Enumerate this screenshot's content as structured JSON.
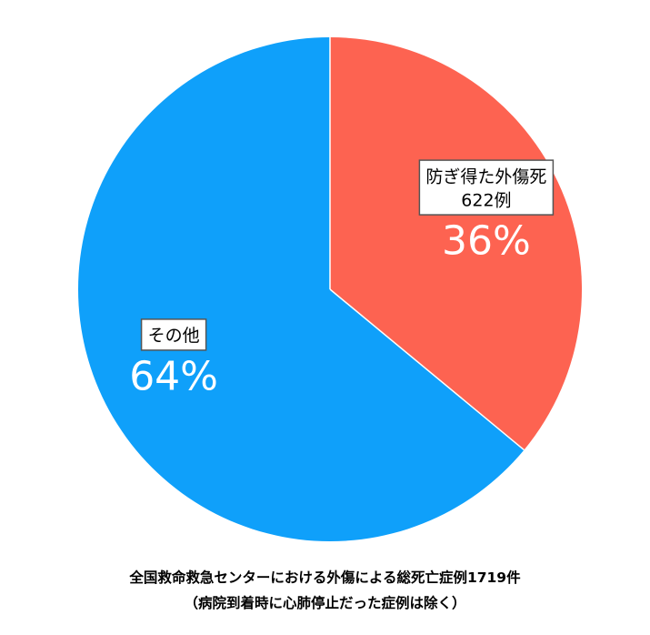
{
  "chart_data": {
    "type": "pie",
    "total": 1719,
    "slices": [
      {
        "label": "防ぎ得た外傷死",
        "count_label": "622例",
        "percent_label": "36%",
        "value": 36,
        "count": 622,
        "color": "#fd6351"
      },
      {
        "label": "その他",
        "percent_label": "64%",
        "value": 64,
        "color": "#0fa0fa"
      }
    ],
    "caption_line1": "全国救命救急センターにおける外傷による総死亡症例1719件",
    "caption_line2": "（病院到着時に心肺停止だった症例は除く）",
    "colors": {
      "label_box_border": "#555555",
      "label_box_fill": "#ffffff",
      "percent_text": "#ffffff"
    }
  }
}
